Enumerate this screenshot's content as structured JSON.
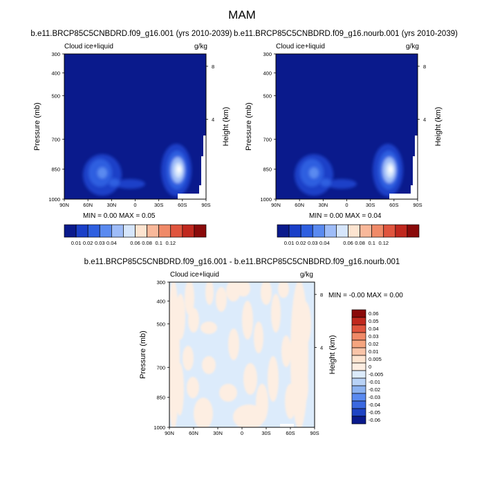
{
  "main_title": "MAM",
  "panels": [
    {
      "title": "b.e11.BRCP85C5CNBDRD.f09_g16.001 (yrs 2010-2039)",
      "left_label": "Cloud ice+liquid",
      "right_label": "g/kg",
      "ylabel": "Pressure (mb)",
      "y2label": "Height (km)",
      "minmax": "MIN =   0.00  MAX =   0.05"
    },
    {
      "title": "b.e11.BRCP85C5CNBDRD.f09_g16.nourb.001 (yrs 2010-2039)",
      "left_label": "Cloud ice+liquid",
      "right_label": "g/kg",
      "ylabel": "Pressure (mb)",
      "y2label": "Height (km)",
      "minmax": "MIN =   0.00  MAX =   0.04"
    },
    {
      "title": "b.e11.BRCP85C5CNBDRD.f09_g16.001 - b.e11.BRCP85C5CNBDRD.f09_g16.nourb.001",
      "left_label": "Cloud ice+liquid",
      "right_label": "g/kg",
      "ylabel": "Pressure (mb)",
      "y2label": "Height (km)",
      "minmax": "MIN =  -0.00  MAX =   0.00"
    }
  ],
  "chart_data": [
    {
      "type": "heatmap",
      "x_ticks": [
        "90N",
        "60N",
        "30N",
        "0",
        "30S",
        "60S",
        "90S"
      ],
      "y_ticks": [
        "300",
        "400",
        "500",
        "700",
        "850",
        "1000"
      ],
      "y2_ticks": [
        "8",
        "4"
      ],
      "colorbar_labels": [
        "0.01",
        "0.02",
        "0.03",
        "0.04",
        "0.06",
        "0.08",
        "0.1",
        "0.12"
      ],
      "colorbar_colors": [
        "#0a1a8c",
        "#1a3fc8",
        "#2e5fe0",
        "#5a8af0",
        "#9ebcf8",
        "#d6e6fc",
        "#fde4d0",
        "#f9b89a",
        "#f08a68",
        "#e0553e",
        "#c0281e",
        "#8a0a0a"
      ],
      "max": 0.05
    },
    {
      "type": "heatmap",
      "x_ticks": [
        "90N",
        "60N",
        "30N",
        "0",
        "30S",
        "60S",
        "90S"
      ],
      "y_ticks": [
        "300",
        "400",
        "500",
        "700",
        "850",
        "1000"
      ],
      "y2_ticks": [
        "8",
        "4"
      ],
      "colorbar_labels": [
        "0.01",
        "0.02",
        "0.03",
        "0.04",
        "0.06",
        "0.08",
        "0.1",
        "0.12"
      ],
      "colorbar_colors": [
        "#0a1a8c",
        "#1a3fc8",
        "#2e5fe0",
        "#5a8af0",
        "#9ebcf8",
        "#d6e6fc",
        "#fde4d0",
        "#f9b89a",
        "#f08a68",
        "#e0553e",
        "#c0281e",
        "#8a0a0a"
      ],
      "max": 0.04
    },
    {
      "type": "heatmap",
      "x_ticks": [
        "90N",
        "60N",
        "30N",
        "0",
        "30S",
        "60S",
        "90S"
      ],
      "y_ticks": [
        "300",
        "400",
        "500",
        "700",
        "850",
        "1000"
      ],
      "y2_ticks": [
        "8",
        "4"
      ],
      "colorbar_labels": [
        "0.06",
        "0.05",
        "0.04",
        "0.03",
        "0.02",
        "0.01",
        "0.005",
        "0",
        "-0.005",
        "-0.01",
        "-0.02",
        "-0.03",
        "-0.04",
        "-0.05",
        "-0.06"
      ],
      "colorbar_colors": [
        "#8a0a0a",
        "#c0281e",
        "#e0553e",
        "#f08a68",
        "#f5a57f",
        "#f9c4a8",
        "#fde4d0",
        "#fdeee2",
        "#dcebfb",
        "#b8d2f6",
        "#8cb2f0",
        "#5a8af0",
        "#3a68e0",
        "#1e44c4",
        "#0a1a8c"
      ],
      "min": -0.0,
      "max": 0.0
    }
  ]
}
